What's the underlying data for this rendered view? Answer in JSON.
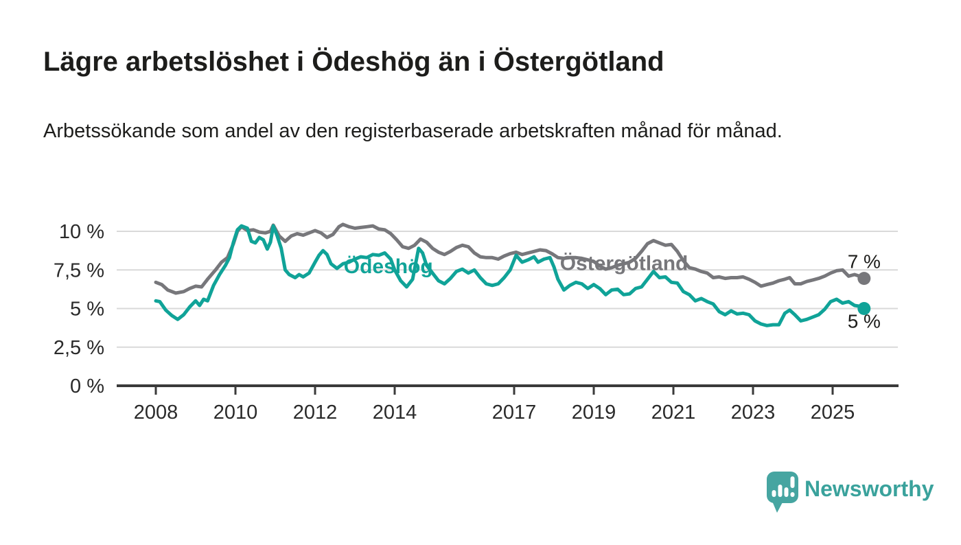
{
  "header": {
    "title": "Lägre arbetslöshet i Ödeshög än i Östergötland",
    "subtitle": "Arbetssökande som andel av den registerbaserade arbetskraften månad för månad."
  },
  "footer": {
    "logo_text": "Newsworthy",
    "logo_color": "#3aa29c",
    "icon_color": "#46a5a1"
  },
  "chart_data": {
    "type": "line",
    "title": "Lägre arbetslöshet i Ödeshög än i Östergötland",
    "xlabel": "",
    "ylabel": "",
    "unit": "%",
    "grid": true,
    "legend_position": "inline-labels",
    "xlim": [
      2007.9,
      2026.6
    ],
    "ylim": [
      0,
      11
    ],
    "x_ticks": [
      {
        "value": 2008,
        "label": "2008"
      },
      {
        "value": 2010,
        "label": "2010"
      },
      {
        "value": 2012,
        "label": "2012"
      },
      {
        "value": 2014,
        "label": "2014"
      },
      {
        "value": 2017,
        "label": "2017"
      },
      {
        "value": 2019,
        "label": "2019"
      },
      {
        "value": 2021,
        "label": "2021"
      },
      {
        "value": 2023,
        "label": "2023"
      },
      {
        "value": 2025,
        "label": "2025"
      }
    ],
    "y_ticks": [
      {
        "value": 0,
        "label": "0 %"
      },
      {
        "value": 2.5,
        "label": "2,5 %"
      },
      {
        "value": 5,
        "label": "5 %"
      },
      {
        "value": 7.5,
        "label": "7,5 %"
      },
      {
        "value": 10,
        "label": "10 %"
      }
    ],
    "colors": {
      "grid": "#d9d9d9",
      "axis": "#3a3a3a",
      "tick_text": "#2a2a2a",
      "end_label_text": "#1d1d1b"
    },
    "series": [
      {
        "name": "Östergötland",
        "color": "#77777b",
        "end_label": "7 %",
        "end_label_position": "above",
        "label_annotation": {
          "x": 2018.15,
          "y": 7.5
        },
        "points": [
          [
            2008.0,
            6.7
          ],
          [
            2008.15,
            6.55
          ],
          [
            2008.3,
            6.2
          ],
          [
            2008.5,
            6.0
          ],
          [
            2008.7,
            6.1
          ],
          [
            2008.85,
            6.3
          ],
          [
            2009.0,
            6.45
          ],
          [
            2009.15,
            6.4
          ],
          [
            2009.3,
            6.9
          ],
          [
            2009.5,
            7.5
          ],
          [
            2009.65,
            8.0
          ],
          [
            2009.8,
            8.3
          ],
          [
            2009.95,
            9.2
          ],
          [
            2010.05,
            10.0
          ],
          [
            2010.15,
            10.3
          ],
          [
            2010.3,
            10.05
          ],
          [
            2010.45,
            10.1
          ],
          [
            2010.6,
            9.95
          ],
          [
            2010.75,
            9.9
          ],
          [
            2010.88,
            10.0
          ],
          [
            2010.95,
            10.4
          ],
          [
            2011.1,
            9.7
          ],
          [
            2011.25,
            9.35
          ],
          [
            2011.4,
            9.7
          ],
          [
            2011.55,
            9.85
          ],
          [
            2011.7,
            9.75
          ],
          [
            2011.85,
            9.9
          ],
          [
            2012.0,
            10.05
          ],
          [
            2012.15,
            9.9
          ],
          [
            2012.3,
            9.6
          ],
          [
            2012.45,
            9.8
          ],
          [
            2012.6,
            10.3
          ],
          [
            2012.7,
            10.45
          ],
          [
            2012.85,
            10.3
          ],
          [
            2013.0,
            10.2
          ],
          [
            2013.15,
            10.25
          ],
          [
            2013.3,
            10.3
          ],
          [
            2013.45,
            10.35
          ],
          [
            2013.6,
            10.15
          ],
          [
            2013.75,
            10.1
          ],
          [
            2013.9,
            9.85
          ],
          [
            2014.05,
            9.45
          ],
          [
            2014.2,
            9.0
          ],
          [
            2014.35,
            8.9
          ],
          [
            2014.5,
            9.1
          ],
          [
            2014.65,
            9.5
          ],
          [
            2014.8,
            9.3
          ],
          [
            2014.95,
            8.9
          ],
          [
            2015.1,
            8.65
          ],
          [
            2015.25,
            8.5
          ],
          [
            2015.4,
            8.7
          ],
          [
            2015.55,
            8.95
          ],
          [
            2015.7,
            9.1
          ],
          [
            2015.85,
            9.0
          ],
          [
            2016.0,
            8.6
          ],
          [
            2016.15,
            8.35
          ],
          [
            2016.3,
            8.3
          ],
          [
            2016.45,
            8.3
          ],
          [
            2016.6,
            8.2
          ],
          [
            2016.75,
            8.4
          ],
          [
            2016.9,
            8.55
          ],
          [
            2017.05,
            8.65
          ],
          [
            2017.2,
            8.5
          ],
          [
            2017.35,
            8.6
          ],
          [
            2017.5,
            8.7
          ],
          [
            2017.65,
            8.8
          ],
          [
            2017.8,
            8.75
          ],
          [
            2017.95,
            8.55
          ],
          [
            2018.1,
            8.3
          ],
          [
            2018.25,
            8.25
          ],
          [
            2018.4,
            8.3
          ],
          [
            2018.55,
            8.3
          ],
          [
            2018.7,
            8.25
          ],
          [
            2018.85,
            8.15
          ],
          [
            2019.0,
            8.05
          ],
          [
            2019.15,
            7.75
          ],
          [
            2019.3,
            7.55
          ],
          [
            2019.45,
            7.65
          ],
          [
            2019.6,
            7.8
          ],
          [
            2019.75,
            7.9
          ],
          [
            2019.9,
            8.0
          ],
          [
            2020.05,
            8.25
          ],
          [
            2020.2,
            8.7
          ],
          [
            2020.35,
            9.2
          ],
          [
            2020.5,
            9.4
          ],
          [
            2020.65,
            9.25
          ],
          [
            2020.8,
            9.1
          ],
          [
            2020.95,
            9.15
          ],
          [
            2021.1,
            8.7
          ],
          [
            2021.25,
            8.1
          ],
          [
            2021.4,
            7.65
          ],
          [
            2021.55,
            7.55
          ],
          [
            2021.7,
            7.4
          ],
          [
            2021.85,
            7.3
          ],
          [
            2022.0,
            7.0
          ],
          [
            2022.15,
            7.05
          ],
          [
            2022.3,
            6.95
          ],
          [
            2022.45,
            7.0
          ],
          [
            2022.6,
            7.0
          ],
          [
            2022.75,
            7.05
          ],
          [
            2022.9,
            6.9
          ],
          [
            2023.05,
            6.7
          ],
          [
            2023.2,
            6.45
          ],
          [
            2023.35,
            6.55
          ],
          [
            2023.5,
            6.65
          ],
          [
            2023.65,
            6.8
          ],
          [
            2023.8,
            6.9
          ],
          [
            2023.92,
            7.0
          ],
          [
            2024.05,
            6.6
          ],
          [
            2024.2,
            6.6
          ],
          [
            2024.35,
            6.75
          ],
          [
            2024.5,
            6.85
          ],
          [
            2024.65,
            6.95
          ],
          [
            2024.8,
            7.1
          ],
          [
            2024.95,
            7.3
          ],
          [
            2025.1,
            7.45
          ],
          [
            2025.25,
            7.5
          ],
          [
            2025.4,
            7.1
          ],
          [
            2025.55,
            7.2
          ],
          [
            2025.67,
            7.1
          ],
          [
            2025.79,
            6.95
          ]
        ]
      },
      {
        "name": "Ödeshög",
        "color": "#10a398",
        "end_label": "5 %",
        "end_label_position": "below",
        "label_annotation": {
          "x": 2012.72,
          "y": 7.3
        },
        "points": [
          [
            2008.0,
            5.5
          ],
          [
            2008.1,
            5.45
          ],
          [
            2008.25,
            4.9
          ],
          [
            2008.4,
            4.55
          ],
          [
            2008.55,
            4.3
          ],
          [
            2008.7,
            4.6
          ],
          [
            2008.85,
            5.1
          ],
          [
            2009.0,
            5.5
          ],
          [
            2009.1,
            5.2
          ],
          [
            2009.2,
            5.6
          ],
          [
            2009.3,
            5.5
          ],
          [
            2009.45,
            6.5
          ],
          [
            2009.6,
            7.2
          ],
          [
            2009.75,
            7.8
          ],
          [
            2009.85,
            8.3
          ],
          [
            2009.95,
            9.3
          ],
          [
            2010.05,
            10.1
          ],
          [
            2010.15,
            10.35
          ],
          [
            2010.3,
            10.2
          ],
          [
            2010.4,
            9.35
          ],
          [
            2010.5,
            9.25
          ],
          [
            2010.6,
            9.6
          ],
          [
            2010.7,
            9.45
          ],
          [
            2010.8,
            8.85
          ],
          [
            2010.88,
            9.3
          ],
          [
            2010.95,
            10.35
          ],
          [
            2011.05,
            9.7
          ],
          [
            2011.15,
            8.9
          ],
          [
            2011.25,
            7.5
          ],
          [
            2011.35,
            7.2
          ],
          [
            2011.5,
            7.0
          ],
          [
            2011.6,
            7.2
          ],
          [
            2011.7,
            7.05
          ],
          [
            2011.85,
            7.3
          ],
          [
            2012.0,
            8.0
          ],
          [
            2012.1,
            8.45
          ],
          [
            2012.2,
            8.75
          ],
          [
            2012.3,
            8.5
          ],
          [
            2012.4,
            7.9
          ],
          [
            2012.55,
            7.6
          ],
          [
            2012.7,
            7.9
          ],
          [
            2012.85,
            8.0
          ],
          [
            2013.0,
            8.2
          ],
          [
            2013.15,
            8.35
          ],
          [
            2013.3,
            8.3
          ],
          [
            2013.45,
            8.5
          ],
          [
            2013.6,
            8.45
          ],
          [
            2013.75,
            8.6
          ],
          [
            2013.9,
            8.2
          ],
          [
            2014.0,
            7.5
          ],
          [
            2014.15,
            6.8
          ],
          [
            2014.3,
            6.4
          ],
          [
            2014.45,
            6.9
          ],
          [
            2014.6,
            8.9
          ],
          [
            2014.7,
            8.6
          ],
          [
            2014.8,
            7.8
          ],
          [
            2014.95,
            7.3
          ],
          [
            2015.1,
            6.8
          ],
          [
            2015.25,
            6.6
          ],
          [
            2015.4,
            6.95
          ],
          [
            2015.55,
            7.4
          ],
          [
            2015.7,
            7.55
          ],
          [
            2015.85,
            7.3
          ],
          [
            2016.0,
            7.5
          ],
          [
            2016.15,
            7.0
          ],
          [
            2016.3,
            6.6
          ],
          [
            2016.45,
            6.5
          ],
          [
            2016.6,
            6.6
          ],
          [
            2016.75,
            7.0
          ],
          [
            2016.9,
            7.5
          ],
          [
            2017.05,
            8.45
          ],
          [
            2017.2,
            8.0
          ],
          [
            2017.35,
            8.15
          ],
          [
            2017.5,
            8.35
          ],
          [
            2017.6,
            8.0
          ],
          [
            2017.75,
            8.2
          ],
          [
            2017.9,
            8.3
          ],
          [
            2018.0,
            7.7
          ],
          [
            2018.1,
            6.9
          ],
          [
            2018.25,
            6.2
          ],
          [
            2018.4,
            6.5
          ],
          [
            2018.55,
            6.7
          ],
          [
            2018.7,
            6.6
          ],
          [
            2018.85,
            6.3
          ],
          [
            2019.0,
            6.55
          ],
          [
            2019.15,
            6.3
          ],
          [
            2019.3,
            5.9
          ],
          [
            2019.45,
            6.2
          ],
          [
            2019.6,
            6.25
          ],
          [
            2019.75,
            5.9
          ],
          [
            2019.9,
            5.95
          ],
          [
            2020.05,
            6.3
          ],
          [
            2020.2,
            6.4
          ],
          [
            2020.35,
            6.9
          ],
          [
            2020.5,
            7.4
          ],
          [
            2020.65,
            7.0
          ],
          [
            2020.8,
            7.05
          ],
          [
            2020.95,
            6.7
          ],
          [
            2021.1,
            6.65
          ],
          [
            2021.25,
            6.1
          ],
          [
            2021.4,
            5.9
          ],
          [
            2021.55,
            5.5
          ],
          [
            2021.7,
            5.65
          ],
          [
            2021.85,
            5.45
          ],
          [
            2022.0,
            5.3
          ],
          [
            2022.15,
            4.8
          ],
          [
            2022.3,
            4.6
          ],
          [
            2022.45,
            4.85
          ],
          [
            2022.6,
            4.65
          ],
          [
            2022.75,
            4.7
          ],
          [
            2022.9,
            4.6
          ],
          [
            2023.05,
            4.2
          ],
          [
            2023.2,
            4.0
          ],
          [
            2023.35,
            3.9
          ],
          [
            2023.5,
            3.95
          ],
          [
            2023.65,
            3.95
          ],
          [
            2023.8,
            4.7
          ],
          [
            2023.92,
            4.9
          ],
          [
            2024.05,
            4.6
          ],
          [
            2024.2,
            4.2
          ],
          [
            2024.35,
            4.3
          ],
          [
            2024.5,
            4.45
          ],
          [
            2024.65,
            4.6
          ],
          [
            2024.8,
            4.95
          ],
          [
            2024.95,
            5.45
          ],
          [
            2025.1,
            5.6
          ],
          [
            2025.25,
            5.35
          ],
          [
            2025.4,
            5.45
          ],
          [
            2025.55,
            5.2
          ],
          [
            2025.67,
            5.15
          ],
          [
            2025.79,
            5.0
          ]
        ]
      }
    ]
  }
}
